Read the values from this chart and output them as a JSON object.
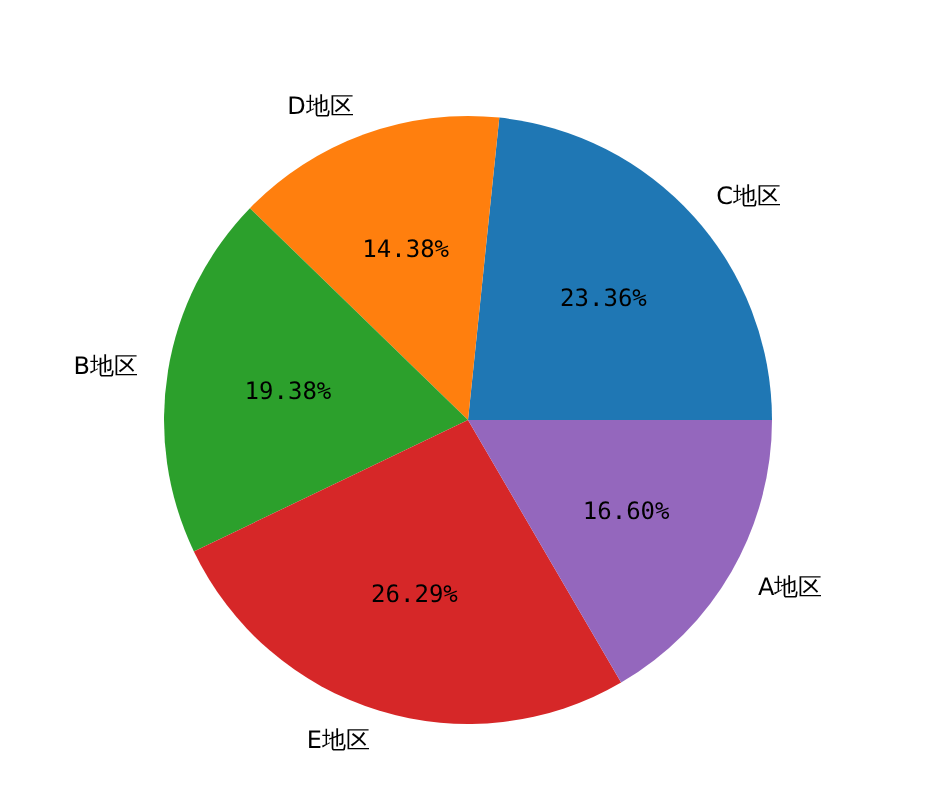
{
  "chart_data": {
    "type": "pie",
    "categories": [
      "C地区",
      "D地区",
      "B地区",
      "E地区",
      "A地区"
    ],
    "values": [
      23.36,
      14.38,
      19.38,
      26.29,
      16.6
    ],
    "colors": [
      "#1f77b4",
      "#ff7f0e",
      "#2ca02c",
      "#d62728",
      "#9467bd"
    ],
    "value_labels": [
      "23.36%",
      "14.38%",
      "19.38%",
      "26.29%",
      "16.60%"
    ]
  }
}
